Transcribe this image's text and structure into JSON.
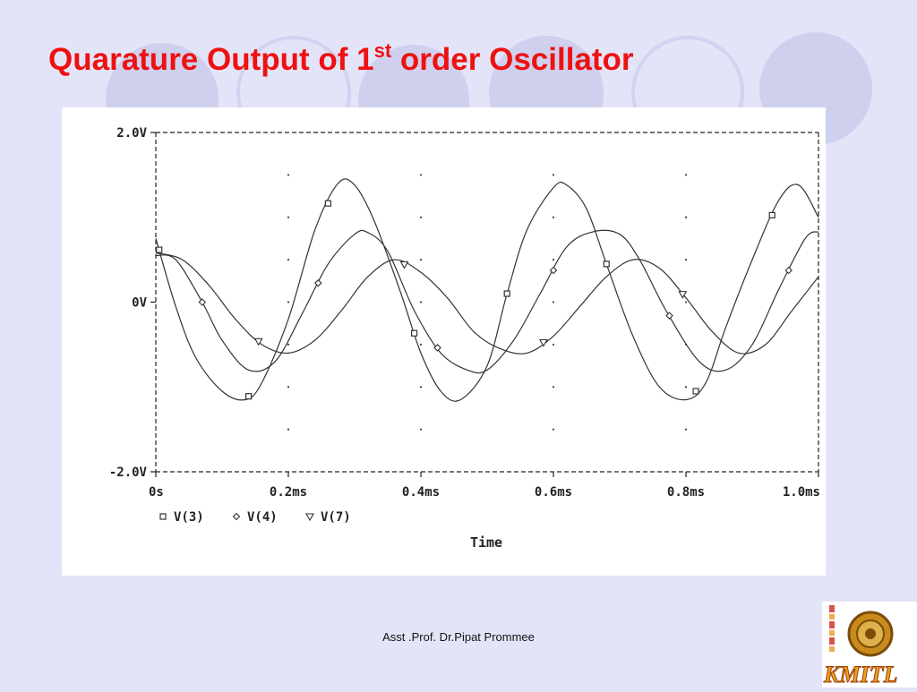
{
  "slide": {
    "title_main": "Quarature Output of 1",
    "title_sup": "st",
    "title_rest": " order Oscillator",
    "footer": "Asst .Prof. Dr.Pipat Prommee",
    "logo_text": "KMITL"
  },
  "colors": {
    "title": "#ee1111",
    "background": "#e4e4f8",
    "trace": "#333333"
  },
  "chart_data": {
    "type": "line",
    "title": "",
    "xlabel": "Time",
    "ylabel": "",
    "xlim": [
      0,
      1.0
    ],
    "ylim": [
      -2.0,
      2.0
    ],
    "x_unit": "ms",
    "x_ticks": [
      {
        "value": 0,
        "label": "0s"
      },
      {
        "value": 0.2,
        "label": "0.2ms"
      },
      {
        "value": 0.4,
        "label": "0.4ms"
      },
      {
        "value": 0.6,
        "label": "0.6ms"
      },
      {
        "value": 0.8,
        "label": "0.8ms"
      },
      {
        "value": 1.0,
        "label": "1.0ms"
      }
    ],
    "y_ticks": [
      {
        "value": 2.0,
        "label": "2.0V"
      },
      {
        "value": 0,
        "label": "0V"
      },
      {
        "value": -2.0,
        "label": "-2.0V"
      }
    ],
    "grid": "dotted",
    "legend_position": "bottom-left",
    "series": [
      {
        "name": "V(3)",
        "marker": "square",
        "x": [
          0,
          0.03,
          0.06,
          0.1,
          0.135,
          0.16,
          0.2,
          0.24,
          0.275,
          0.3,
          0.33,
          0.37,
          0.4,
          0.43,
          0.46,
          0.5,
          0.53,
          0.56,
          0.6,
          0.62,
          0.65,
          0.68,
          0.72,
          0.76,
          0.8,
          0.83,
          0.86,
          0.9,
          0.94,
          0.97,
          1.0
        ],
        "y": [
          0.75,
          -0.05,
          -0.65,
          -1.05,
          -1.15,
          -0.95,
          -0.2,
          0.85,
          1.4,
          1.38,
          0.95,
          0.1,
          -0.6,
          -1.05,
          -1.15,
          -0.75,
          0.1,
          0.85,
          1.35,
          1.38,
          1.1,
          0.45,
          -0.4,
          -1.0,
          -1.15,
          -0.95,
          -0.3,
          0.5,
          1.2,
          1.38,
          1.0
        ],
        "marker_x": [
          0.005,
          0.14,
          0.26,
          0.39,
          0.53,
          0.68,
          0.815,
          0.93
        ]
      },
      {
        "name": "V(4)",
        "marker": "diamond",
        "x": [
          0,
          0.03,
          0.07,
          0.1,
          0.14,
          0.18,
          0.22,
          0.26,
          0.3,
          0.32,
          0.35,
          0.39,
          0.43,
          0.47,
          0.5,
          0.54,
          0.58,
          0.62,
          0.66,
          0.7,
          0.73,
          0.77,
          0.82,
          0.86,
          0.9,
          0.94,
          0.98,
          1.0
        ],
        "y": [
          0.55,
          0.5,
          0.0,
          -0.45,
          -0.8,
          -0.7,
          -0.15,
          0.45,
          0.8,
          0.82,
          0.6,
          -0.1,
          -0.6,
          -0.8,
          -0.8,
          -0.45,
          0.1,
          0.65,
          0.83,
          0.8,
          0.5,
          -0.1,
          -0.7,
          -0.8,
          -0.5,
          0.15,
          0.75,
          0.83
        ],
        "marker_x": [
          0.07,
          0.245,
          0.425,
          0.6,
          0.775,
          0.955
        ]
      },
      {
        "name": "V(7)",
        "marker": "triangle",
        "x": [
          0,
          0.04,
          0.08,
          0.12,
          0.16,
          0.2,
          0.24,
          0.28,
          0.32,
          0.36,
          0.4,
          0.44,
          0.48,
          0.52,
          0.56,
          0.6,
          0.64,
          0.68,
          0.72,
          0.76,
          0.8,
          0.84,
          0.88,
          0.92,
          0.96,
          1.0
        ],
        "y": [
          0.58,
          0.5,
          0.2,
          -0.2,
          -0.5,
          -0.6,
          -0.45,
          -0.1,
          0.3,
          0.5,
          0.35,
          0.05,
          -0.35,
          -0.55,
          -0.6,
          -0.4,
          -0.05,
          0.3,
          0.5,
          0.4,
          0.05,
          -0.35,
          -0.6,
          -0.5,
          -0.1,
          0.3
        ],
        "marker_x": [
          0.155,
          0.375,
          0.585,
          0.795
        ]
      }
    ]
  }
}
